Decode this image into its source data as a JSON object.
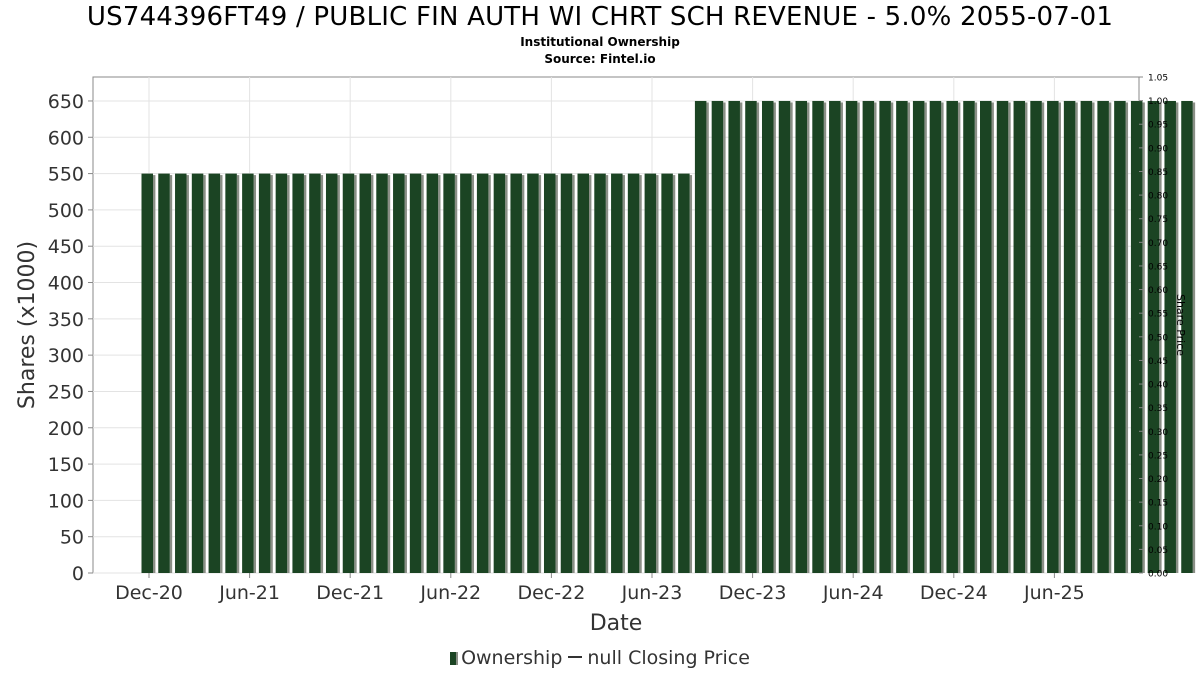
{
  "title": "US744396FT49 / PUBLIC FIN AUTH WI CHRT SCH REVENUE - 5.0% 2055-07-01",
  "subtitle": "Institutional Ownership",
  "source": "Source: Fintel.io",
  "legend": {
    "ownership_label": "Ownership",
    "price_label": "null Closing Price"
  },
  "colors": {
    "bar": "#1b4423",
    "bar_shadow": "#8a8f86",
    "grid": "#e3e3e3",
    "axis": "#888888"
  },
  "chart_data": {
    "type": "bar",
    "title": "US744396FT49 / PUBLIC FIN AUTH WI CHRT SCH REVENUE - 5.0% 2055-07-01",
    "subtitle": "Institutional Ownership",
    "xlabel": "Date",
    "ylabel": "Shares (x1000)",
    "y2label": "Share Price",
    "x_ticks": [
      "Dec-20",
      "Jun-21",
      "Dec-21",
      "Jun-22",
      "Dec-22",
      "Jun-23",
      "Dec-23",
      "Jun-24",
      "Dec-24",
      "Jun-25"
    ],
    "y_ticks": [
      0,
      50,
      100,
      150,
      200,
      250,
      300,
      350,
      400,
      450,
      500,
      550,
      600,
      650
    ],
    "ylim": [
      0,
      683
    ],
    "y2_ticks": [
      "0.00",
      "0.05",
      "0.10",
      "0.15",
      "0.20",
      "0.25",
      "0.30",
      "0.35",
      "0.40",
      "0.45",
      "0.50",
      "0.55",
      "0.60",
      "0.65",
      "0.70",
      "0.75",
      "0.80",
      "0.85",
      "0.90",
      "0.95",
      "1.00",
      "1.05"
    ],
    "y2lim": [
      0,
      1.05
    ],
    "grid": true,
    "legend_position": "bottom",
    "series": [
      {
        "name": "Ownership",
        "values": [
          550,
          550,
          550,
          550,
          550,
          550,
          550,
          550,
          550,
          550,
          550,
          550,
          550,
          550,
          550,
          550,
          550,
          550,
          550,
          550,
          550,
          550,
          550,
          550,
          550,
          550,
          550,
          550,
          550,
          550,
          550,
          550,
          550,
          650,
          650,
          650,
          650,
          650,
          650,
          650,
          650,
          650,
          650,
          650,
          650,
          650,
          650,
          650,
          650,
          650,
          650,
          650,
          650,
          650,
          650,
          650,
          650,
          650,
          650,
          650,
          650,
          650,
          650
        ]
      },
      {
        "name": "null Closing Price",
        "values": []
      }
    ]
  }
}
